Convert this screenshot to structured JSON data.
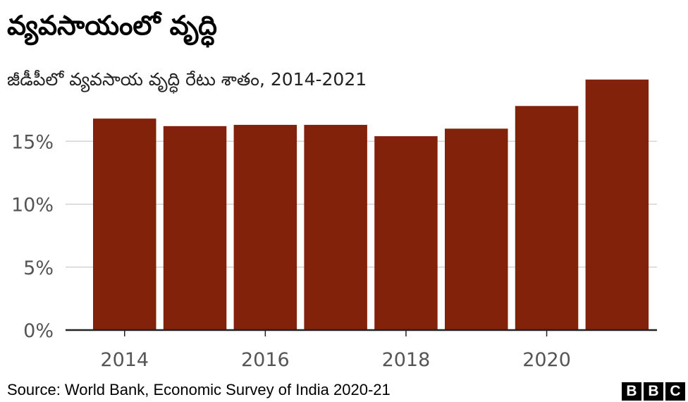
{
  "title": "వ్యవసాయంలో వృద్ధి",
  "subtitle": "జీడీపీలో వ్యవసాయ వృద్ధి రేటు శాతం, 2014-2021",
  "source": "Source: World Bank, Economic Survey of India 2020-21",
  "logo": [
    "B",
    "B",
    "C"
  ],
  "colors": {
    "bar": "#83220b",
    "grid": "#cccccc",
    "axis": "#222222",
    "tick_text": "#555555"
  },
  "chart_data": {
    "type": "bar",
    "x": [
      2014,
      2015,
      2016,
      2017,
      2018,
      2019,
      2020,
      2021
    ],
    "values": [
      16.8,
      16.2,
      16.3,
      16.3,
      15.4,
      16.0,
      17.8,
      19.9
    ],
    "xticks": [
      2014,
      2016,
      2018,
      2020
    ],
    "xtick_labels": [
      "2014",
      "2016",
      "2018",
      "2020"
    ],
    "yticks": [
      0,
      5,
      10,
      15
    ],
    "ytick_labels": [
      "0%",
      "5%",
      "10%",
      "15%"
    ],
    "ylim": [
      0,
      20
    ],
    "grid": true
  }
}
